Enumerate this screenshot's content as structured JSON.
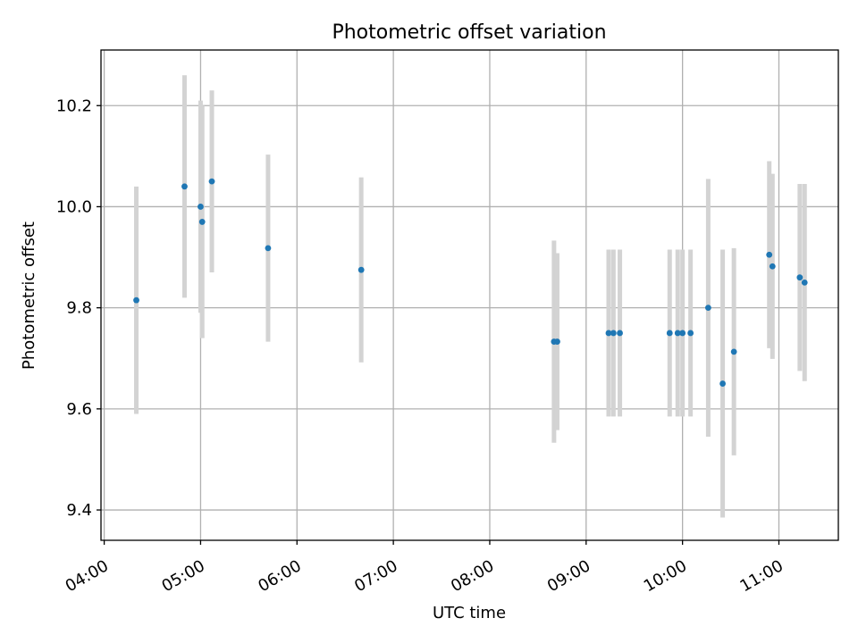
{
  "chart_data": {
    "type": "scatter",
    "title": "Photometric offset variation",
    "xlabel": "UTC time",
    "ylabel": "Photometric offset",
    "x_axis": {
      "kind": "time",
      "range": [
        "03:58",
        "11:37"
      ],
      "ticks": [
        "04:00",
        "05:00",
        "06:00",
        "07:00",
        "08:00",
        "09:00",
        "10:00",
        "11:00"
      ]
    },
    "y_axis": {
      "range": [
        9.34,
        10.31
      ],
      "ticks": [
        "9.4",
        "9.6",
        "9.8",
        "10.0",
        "10.2"
      ]
    },
    "grid": true,
    "legend": "none",
    "colors": {
      "point": "#1f77b4",
      "errorbar": "#d3d3d3",
      "grid": "#b0b0b0"
    },
    "points": [
      {
        "x": "04:20",
        "y": 9.815,
        "err": 0.225
      },
      {
        "x": "04:50",
        "y": 10.04,
        "err": 0.22
      },
      {
        "x": "05:00",
        "y": 10.0,
        "err": 0.21
      },
      {
        "x": "05:01",
        "y": 9.97,
        "err": 0.23
      },
      {
        "x": "05:07",
        "y": 10.05,
        "err": 0.18
      },
      {
        "x": "05:42",
        "y": 9.918,
        "err": 0.185
      },
      {
        "x": "06:40",
        "y": 9.875,
        "err": 0.183
      },
      {
        "x": "08:40",
        "y": 9.733,
        "err": 0.2
      },
      {
        "x": "08:42",
        "y": 9.733,
        "err": 0.175
      },
      {
        "x": "09:14",
        "y": 9.75,
        "err": 0.165
      },
      {
        "x": "09:17",
        "y": 9.75,
        "err": 0.165
      },
      {
        "x": "09:21",
        "y": 9.75,
        "err": 0.165
      },
      {
        "x": "09:52",
        "y": 9.75,
        "err": 0.165
      },
      {
        "x": "09:57",
        "y": 9.75,
        "err": 0.165
      },
      {
        "x": "10:00",
        "y": 9.75,
        "err": 0.165
      },
      {
        "x": "10:05",
        "y": 9.75,
        "err": 0.165
      },
      {
        "x": "10:16",
        "y": 9.8,
        "err": 0.255
      },
      {
        "x": "10:25",
        "y": 9.65,
        "err": 0.265
      },
      {
        "x": "10:32",
        "y": 9.713,
        "err": 0.205
      },
      {
        "x": "10:54",
        "y": 9.905,
        "err": 0.185
      },
      {
        "x": "10:56",
        "y": 9.882,
        "err": 0.183
      },
      {
        "x": "11:13",
        "y": 9.86,
        "err": 0.185
      },
      {
        "x": "11:16",
        "y": 9.85,
        "err": 0.195
      }
    ]
  }
}
